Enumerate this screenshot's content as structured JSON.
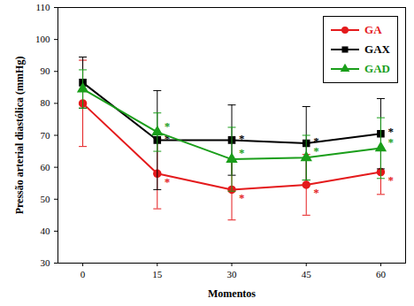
{
  "chart_data": {
    "type": "line",
    "xlabel": "Momentos",
    "ylabel": "Pressão arterial diastólica (mmHg)",
    "x": [
      0,
      15,
      30,
      45,
      60
    ],
    "xlim": [
      -5,
      65
    ],
    "xticks": [
      0,
      15,
      30,
      45,
      60
    ],
    "ylim": [
      30,
      110
    ],
    "yticks": [
      30,
      40,
      50,
      60,
      70,
      80,
      90,
      100,
      110
    ],
    "legend": "top-right",
    "series": [
      {
        "name": "GA",
        "color": "#e41a1c",
        "marker": "circle",
        "values": [
          80,
          58,
          53,
          54.5,
          58.5
        ],
        "error": [
          13.5,
          11,
          9.5,
          9.5,
          7
        ],
        "annotations": [
          null,
          "*",
          "*",
          "*",
          "*"
        ]
      },
      {
        "name": "GAX",
        "color": "#000000",
        "marker": "square",
        "values": [
          86.5,
          68.5,
          68.5,
          67.5,
          70.5
        ],
        "error": [
          8,
          15.5,
          11,
          11.5,
          11
        ],
        "annotations": [
          null,
          "*",
          "*",
          "*",
          "*"
        ]
      },
      {
        "name": "GAD",
        "color": "#1a9e1a",
        "marker": "triangle",
        "values": [
          84.5,
          71,
          62.5,
          63,
          66
        ],
        "error": [
          6,
          6,
          10,
          7,
          9.5
        ],
        "annotations": [
          null,
          "*",
          "*",
          "*",
          "*"
        ]
      }
    ]
  }
}
